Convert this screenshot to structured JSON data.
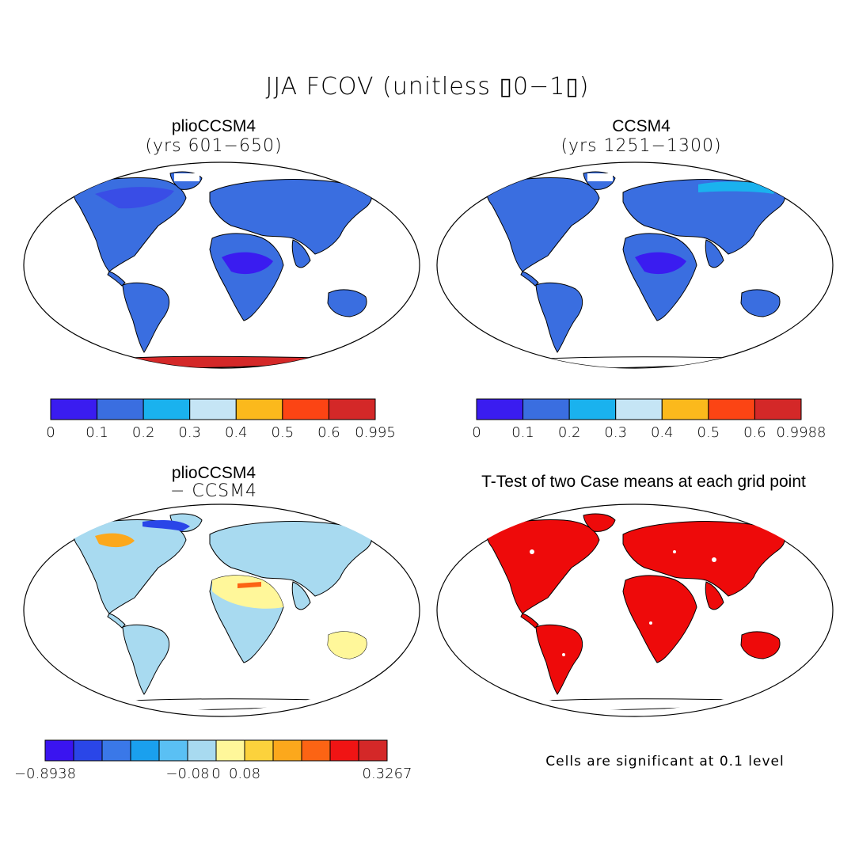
{
  "figure": {
    "title": "JJA FCOV (unitless ▯0−1▯)"
  },
  "panels": [
    {
      "id": "plio",
      "title": "plioCCSM4",
      "subtitle": "(yrs 601−650)",
      "colorbar": {
        "colors": [
          "#3a1cf0",
          "#3a6ee0",
          "#1ab2ee",
          "#c5e5f5",
          "#fbb91c",
          "#fc4414",
          "#d42828"
        ],
        "ticks": [
          "0",
          "0.1",
          "0.2",
          "0.3",
          "0.4",
          "0.5",
          "0.6",
          "0.995"
        ]
      }
    },
    {
      "id": "ccsm",
      "title": "CCSM4",
      "subtitle": "(yrs 1251−1300)",
      "colorbar": {
        "colors": [
          "#3a1cf0",
          "#3a6ee0",
          "#1ab2ee",
          "#c5e5f5",
          "#fbb91c",
          "#fc4414",
          "#d42828"
        ],
        "ticks": [
          "0",
          "0.1",
          "0.2",
          "0.3",
          "0.4",
          "0.5",
          "0.6",
          "0.9988"
        ]
      }
    },
    {
      "id": "diff",
      "title": "plioCCSM4",
      "subtitle": "− CCSM4",
      "colorbar": {
        "colors": [
          "#3a14f0",
          "#2a46e8",
          "#3a78e8",
          "#1aa0ee",
          "#5ac0f4",
          "#a8daf0",
          "#fff79a",
          "#fcd23c",
          "#fca81c",
          "#fc6414",
          "#f01414",
          "#d42828"
        ],
        "ticks": [
          "−0.8938",
          "−0.08",
          "0",
          "0.08",
          "0.3267"
        ]
      }
    },
    {
      "id": "ttest",
      "title": "T-Test of two Case means at each grid point",
      "note": "Cells are significant at 0.1 level"
    }
  ]
}
